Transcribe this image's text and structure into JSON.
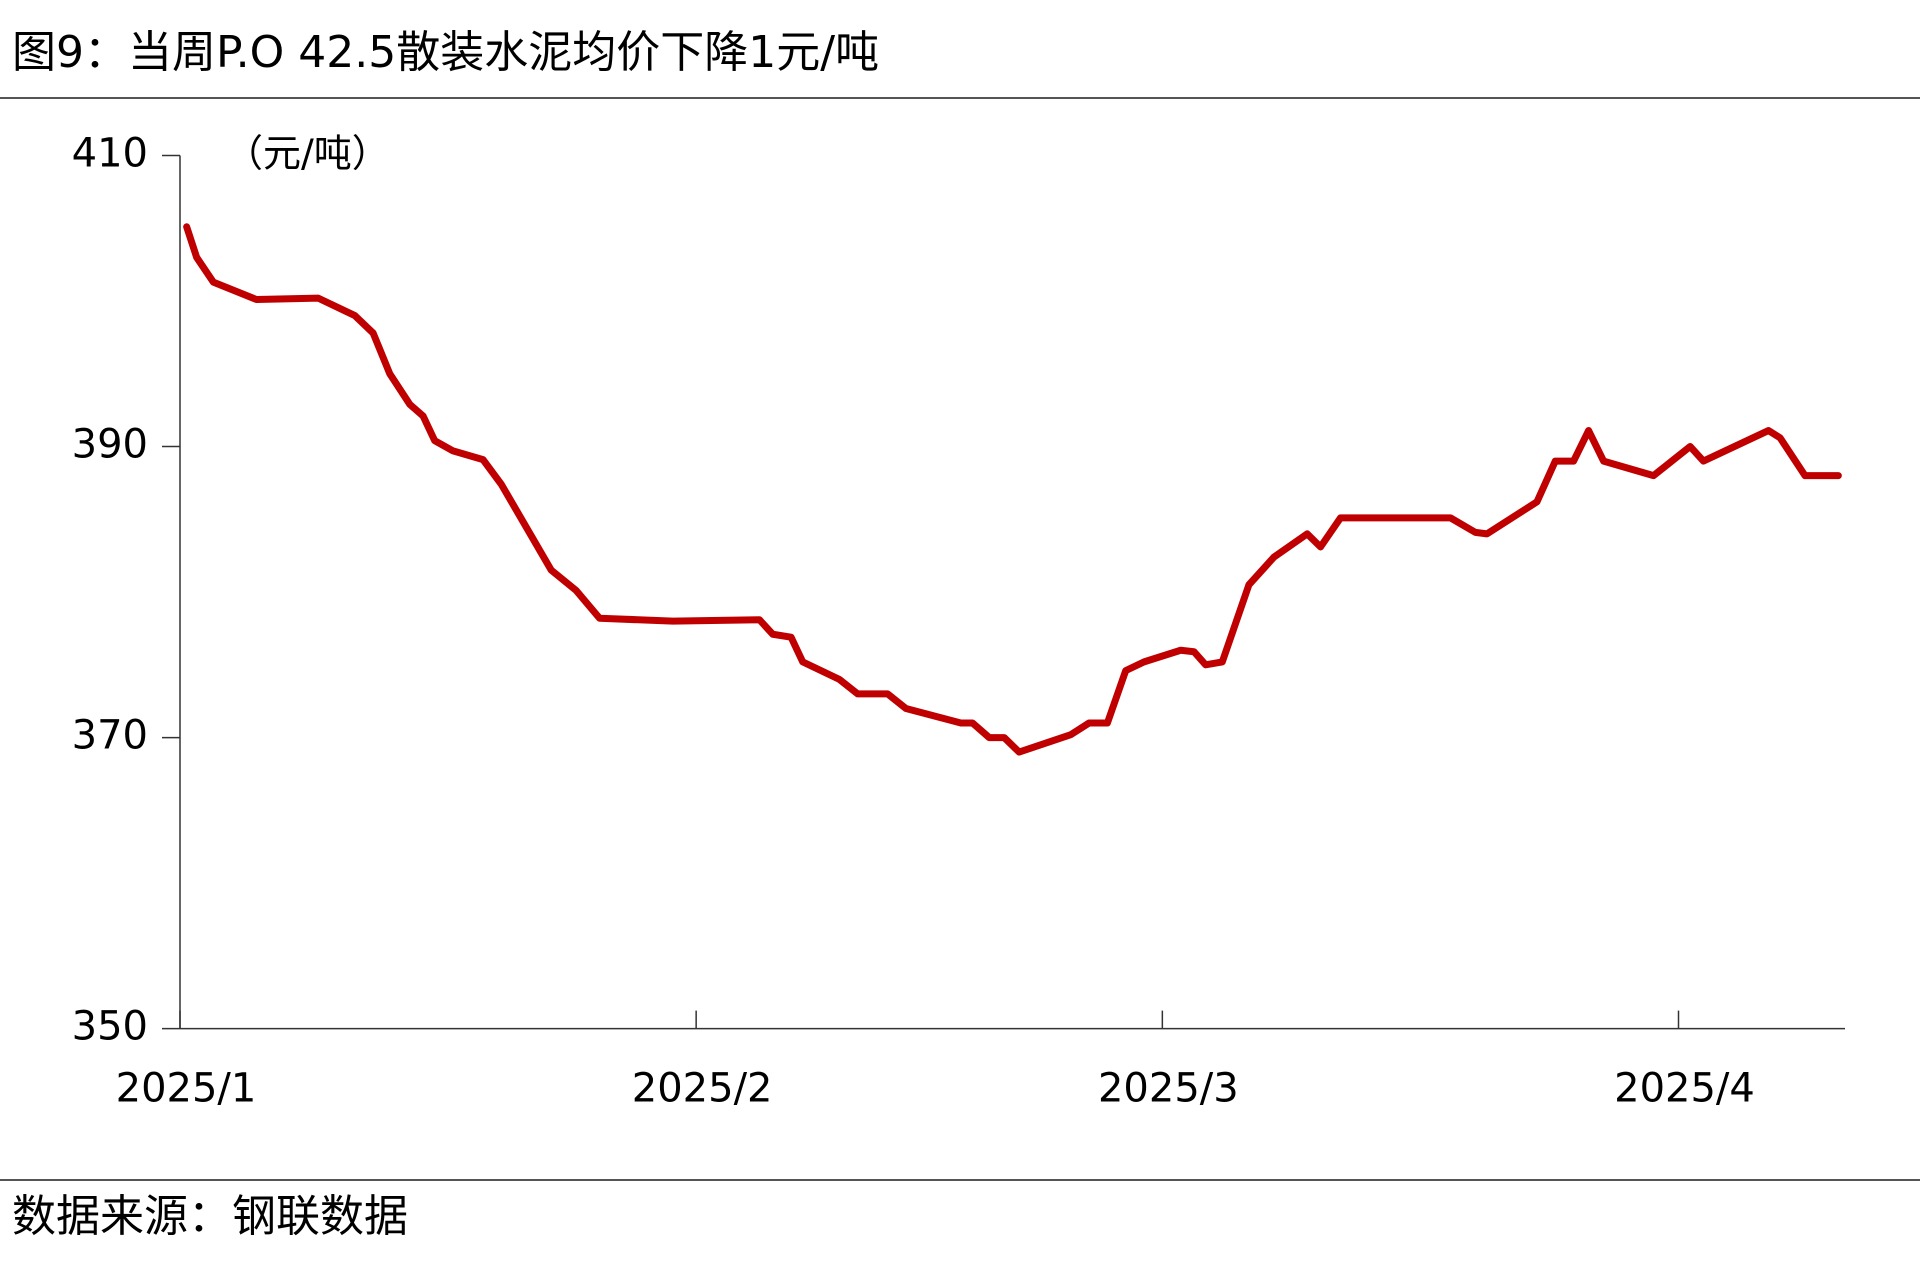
{
  "chart_data": {
    "type": "line",
    "title": "图9：当周P.O 42.5散装水泥均价下降1元/吨",
    "y_label": "（元/吨）",
    "source": "数据来源：钢联数据",
    "color": "#c00000",
    "x": [
      0.4,
      1,
      2,
      4.6,
      8.3,
      10.5,
      11.6,
      12.6,
      13.8,
      14.6,
      15.3,
      16.4,
      18.2,
      19.3,
      22.3,
      23.8,
      25.2,
      29.6,
      34.8,
      35.6,
      36.7,
      37.4,
      39.6,
      40.7,
      42.5,
      43.6,
      46.9,
      47.6,
      48.6,
      49.5,
      50.4,
      53.5,
      54.6,
      55.7,
      56.8,
      57.9,
      60.1,
      60.9,
      61.6,
      62.6,
      64.2,
      65.7,
      67.7,
      68.5,
      69.7,
      76.3,
      77.8,
      78.5,
      81.5,
      82.6,
      83.7,
      84.6,
      85.5,
      88.5,
      90.7,
      91.5,
      95.4,
      96.1,
      97.6,
      99.6
    ],
    "values": [
      405.1,
      403.0,
      401.3,
      400.1,
      400.2,
      399.0,
      397.8,
      395.0,
      392.9,
      392.1,
      390.4,
      389.7,
      389.1,
      387.4,
      381.5,
      380.1,
      378.2,
      378.0,
      378.1,
      377.1,
      376.9,
      375.2,
      374.0,
      373.0,
      373.0,
      372.0,
      371.0,
      371.0,
      370.0,
      370.0,
      369.0,
      370.2,
      371.0,
      371.0,
      374.6,
      375.2,
      376.0,
      375.9,
      375.0,
      375.2,
      380.5,
      382.4,
      384.0,
      383.1,
      385.1,
      385.1,
      384.1,
      384.0,
      386.2,
      389.0,
      389.0,
      391.1,
      389.0,
      388.0,
      390.0,
      389.0,
      391.1,
      390.6,
      388.0,
      388.0
    ],
    "xlim": [
      0,
      100
    ],
    "xticks": [
      {
        "value": 0,
        "label": "2025/1"
      },
      {
        "value": 31,
        "label": "2025/2"
      },
      {
        "value": 59,
        "label": "2025/3"
      },
      {
        "value": 90,
        "label": "2025/4"
      }
    ],
    "ylim": [
      350,
      410
    ],
    "yticks": [
      350,
      370,
      390,
      410
    ]
  }
}
